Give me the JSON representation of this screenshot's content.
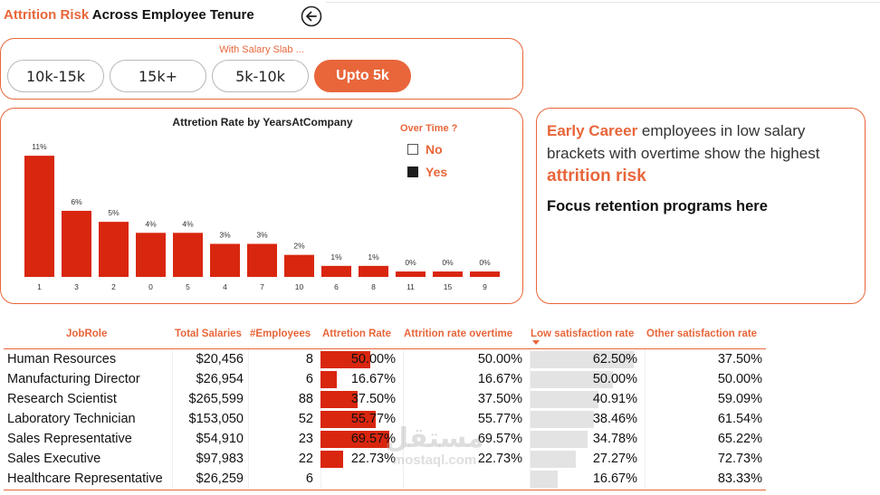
{
  "header": {
    "title_accent": "Attrition Risk",
    "title_rest": " Across Employee Tenure",
    "back_icon": "back-arrow-icon"
  },
  "slicer": {
    "title": "With Salary Slab ...",
    "options": [
      "10k-15k",
      "15k+",
      "5k-10k",
      "Upto 5k"
    ],
    "selected": "Upto 5k"
  },
  "chart_data": {
    "type": "bar",
    "title": "Attretion Rate by YearsAtCompany",
    "xlabel": "",
    "ylabel": "",
    "categories": [
      "1",
      "3",
      "2",
      "0",
      "5",
      "4",
      "7",
      "10",
      "6",
      "8",
      "11",
      "15",
      "9"
    ],
    "values": [
      11,
      6,
      5,
      4,
      4,
      3,
      3,
      2,
      1,
      1,
      0,
      0,
      0
    ],
    "labels": [
      "11%",
      "6%",
      "5%",
      "4%",
      "4%",
      "3%",
      "3%",
      "2%",
      "1%",
      "1%",
      "0%",
      "0%",
      "0%"
    ],
    "ylim": [
      0,
      11.5
    ],
    "bar_color": "#d9260f",
    "grid": false,
    "legend": {
      "title": "Over Time ?",
      "placement": "top-right",
      "items": [
        {
          "label": "No",
          "selected": false
        },
        {
          "label": "Yes",
          "selected": true
        }
      ]
    }
  },
  "insight": {
    "highlight1": "Early Career",
    "text1": " employees in low salary brackets with overtime show the highest ",
    "highlight2": "attrition risk",
    "subtext": "Focus retention programs here"
  },
  "table": {
    "columns": [
      "JobRole",
      "Total Salaries",
      "#Employees",
      "Attretion Rate",
      "Attrition rate overtime",
      "Low satisfaction rate",
      "Other satisfaction rate"
    ],
    "sorted_column": "Low satisfaction rate",
    "rows": [
      {
        "role": "Human Resources",
        "salaries": "$20,456",
        "employees": "8",
        "attrition": "50.00%",
        "attrition_ot": "50.00%",
        "low_sat": "62.50%",
        "other_sat": "37.50%",
        "attrition_pct": 50.0,
        "low_sat_pct": 62.5
      },
      {
        "role": "Manufacturing Director",
        "salaries": "$26,954",
        "employees": "6",
        "attrition": "16.67%",
        "attrition_ot": "16.67%",
        "low_sat": "50.00%",
        "other_sat": "50.00%",
        "attrition_pct": 16.67,
        "low_sat_pct": 50.0
      },
      {
        "role": "Research Scientist",
        "salaries": "$265,599",
        "employees": "88",
        "attrition": "37.50%",
        "attrition_ot": "37.50%",
        "low_sat": "40.91%",
        "other_sat": "59.09%",
        "attrition_pct": 37.5,
        "low_sat_pct": 40.91
      },
      {
        "role": "Laboratory Technician",
        "salaries": "$153,050",
        "employees": "52",
        "attrition": "55.77%",
        "attrition_ot": "55.77%",
        "low_sat": "38.46%",
        "other_sat": "61.54%",
        "attrition_pct": 55.77,
        "low_sat_pct": 38.46
      },
      {
        "role": "Sales Representative",
        "salaries": "$54,910",
        "employees": "23",
        "attrition": "69.57%",
        "attrition_ot": "69.57%",
        "low_sat": "34.78%",
        "other_sat": "65.22%",
        "attrition_pct": 69.57,
        "low_sat_pct": 34.78
      },
      {
        "role": "Sales Executive",
        "salaries": "$97,983",
        "employees": "22",
        "attrition": "22.73%",
        "attrition_ot": "22.73%",
        "low_sat": "27.27%",
        "other_sat": "72.73%",
        "attrition_pct": 22.73,
        "low_sat_pct": 27.27
      },
      {
        "role": "Healthcare Representative",
        "salaries": "$26,259",
        "employees": "6",
        "attrition": "",
        "attrition_ot": "",
        "low_sat": "16.67%",
        "other_sat": "83.33%",
        "attrition_pct": 0,
        "low_sat_pct": 16.67
      }
    ]
  },
  "watermark": {
    "arabic": "مستقل",
    "latin": "mostaql.com"
  }
}
